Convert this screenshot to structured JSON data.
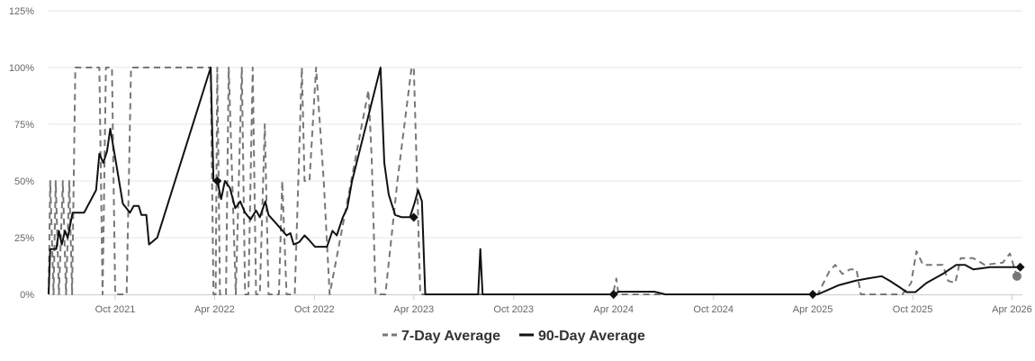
{
  "chart_data": {
    "type": "line",
    "title": "",
    "xlabel": "",
    "ylabel": "",
    "ylim": [
      0,
      1.25
    ],
    "y_ticks": [
      {
        "value": 0,
        "label": "0%"
      },
      {
        "value": 0.25,
        "label": "25%"
      },
      {
        "value": 0.5,
        "label": "50%"
      },
      {
        "value": 0.75,
        "label": "75%"
      },
      {
        "value": 1.0,
        "label": "100%"
      },
      {
        "value": 1.25,
        "label": "125%"
      }
    ],
    "xlim": [
      "2021-06-01",
      "2026-04-20"
    ],
    "x_ticks": [
      {
        "date": "2021-10-01",
        "label": "Oct 2021"
      },
      {
        "date": "2022-04-01",
        "label": "Apr 2022"
      },
      {
        "date": "2022-10-01",
        "label": "Oct 2022"
      },
      {
        "date": "2023-04-01",
        "label": "Apr 2023"
      },
      {
        "date": "2023-10-01",
        "label": "Oct 2023"
      },
      {
        "date": "2024-04-01",
        "label": "Apr 2024"
      },
      {
        "date": "2024-10-01",
        "label": "Oct 2024"
      },
      {
        "date": "2025-04-01",
        "label": "Apr 2025"
      },
      {
        "date": "2025-10-01",
        "label": "Oct 2025"
      },
      {
        "date": "2026-04-01",
        "label": "Apr 2026"
      }
    ],
    "grid": "horizontal",
    "legend_position": "bottom-center",
    "series": [
      {
        "name": "7-Day Average",
        "color": "#777777",
        "style": "dashed",
        "end_marker": "circle",
        "points": [
          [
            "2021-06-01",
            0
          ],
          [
            "2021-06-04",
            0.5
          ],
          [
            "2021-06-10",
            0
          ],
          [
            "2021-06-14",
            0.5
          ],
          [
            "2021-06-20",
            0
          ],
          [
            "2021-06-27",
            0.5
          ],
          [
            "2021-07-03",
            0
          ],
          [
            "2021-07-09",
            0.5
          ],
          [
            "2021-07-14",
            0
          ],
          [
            "2021-07-20",
            1.0
          ],
          [
            "2021-09-02",
            1.0
          ],
          [
            "2021-09-08",
            0
          ],
          [
            "2021-09-14",
            1.0
          ],
          [
            "2021-09-25",
            1.0
          ],
          [
            "2021-10-01",
            0
          ],
          [
            "2021-10-06",
            0
          ],
          [
            "2021-10-12",
            0
          ],
          [
            "2021-10-22",
            0
          ],
          [
            "2021-10-30",
            1.0
          ],
          [
            "2022-03-25",
            1.0
          ],
          [
            "2022-03-30",
            0
          ],
          [
            "2022-04-03",
            0
          ],
          [
            "2022-04-06",
            1.0
          ],
          [
            "2022-04-11",
            0
          ],
          [
            "2022-04-22",
            0
          ],
          [
            "2022-04-27",
            1.0
          ],
          [
            "2022-05-10",
            0
          ],
          [
            "2022-05-21",
            1.0
          ],
          [
            "2022-05-27",
            0
          ],
          [
            "2022-06-02",
            0
          ],
          [
            "2022-06-10",
            1.0
          ],
          [
            "2022-06-16",
            0
          ],
          [
            "2022-06-23",
            0
          ],
          [
            "2022-07-02",
            0.75
          ],
          [
            "2022-07-09",
            0
          ],
          [
            "2022-07-28",
            0
          ],
          [
            "2022-08-03",
            0.5
          ],
          [
            "2022-08-11",
            0
          ],
          [
            "2022-08-26",
            0
          ],
          [
            "2022-09-08",
            1.0
          ],
          [
            "2022-09-13",
            0.5
          ],
          [
            "2022-09-22",
            0.5
          ],
          [
            "2022-10-04",
            1.0
          ],
          [
            "2022-10-18",
            0.5
          ],
          [
            "2022-10-29",
            0
          ],
          [
            "2023-01-08",
            0.9
          ],
          [
            "2023-01-14",
            0.6
          ],
          [
            "2023-01-21",
            0
          ],
          [
            "2023-02-08",
            0
          ],
          [
            "2023-03-02",
            0.5
          ],
          [
            "2023-03-28",
            1.0
          ],
          [
            "2023-04-01",
            1.0
          ],
          [
            "2023-04-13",
            0
          ],
          [
            "2024-03-31",
            0
          ],
          [
            "2024-04-06",
            0.07
          ],
          [
            "2024-04-10",
            0
          ],
          [
            "2025-04-10",
            0
          ],
          [
            "2025-05-01",
            0.1
          ],
          [
            "2025-05-12",
            0.13
          ],
          [
            "2025-05-25",
            0.09
          ],
          [
            "2025-06-08",
            0.11
          ],
          [
            "2025-06-20",
            0.11
          ],
          [
            "2025-06-28",
            0
          ],
          [
            "2025-09-12",
            0
          ],
          [
            "2025-09-28",
            0.05
          ],
          [
            "2025-10-08",
            0.19
          ],
          [
            "2025-10-20",
            0.13
          ],
          [
            "2025-11-06",
            0.13
          ],
          [
            "2025-11-25",
            0.13
          ],
          [
            "2025-12-05",
            0.06
          ],
          [
            "2025-12-18",
            0.05
          ],
          [
            "2025-12-28",
            0.16
          ],
          [
            "2026-01-20",
            0.16
          ],
          [
            "2026-02-10",
            0.13
          ],
          [
            "2026-03-15",
            0.14
          ],
          [
            "2026-03-28",
            0.18
          ],
          [
            "2026-04-10",
            0.08
          ]
        ]
      },
      {
        "name": "90-Day Average",
        "color": "#111111",
        "style": "solid",
        "end_marker": "diamond",
        "points": [
          [
            "2021-06-01",
            0
          ],
          [
            "2021-06-04",
            0.2
          ],
          [
            "2021-06-15",
            0.2
          ],
          [
            "2021-06-20",
            0.28
          ],
          [
            "2021-06-25",
            0.22
          ],
          [
            "2021-07-01",
            0.28
          ],
          [
            "2021-07-06",
            0.25
          ],
          [
            "2021-07-15",
            0.36
          ],
          [
            "2021-08-05",
            0.36
          ],
          [
            "2021-08-27",
            0.46
          ],
          [
            "2021-09-02",
            0.62
          ],
          [
            "2021-09-09",
            0.58
          ],
          [
            "2021-09-16",
            0.63
          ],
          [
            "2021-09-22",
            0.73
          ],
          [
            "2021-10-04",
            0.56
          ],
          [
            "2021-10-15",
            0.4
          ],
          [
            "2021-10-28",
            0.36
          ],
          [
            "2021-11-04",
            0.39
          ],
          [
            "2021-11-13",
            0.39
          ],
          [
            "2021-11-18",
            0.35
          ],
          [
            "2021-11-27",
            0.35
          ],
          [
            "2021-12-02",
            0.22
          ],
          [
            "2021-12-17",
            0.25
          ],
          [
            "2022-03-25",
            1.0
          ],
          [
            "2022-03-30",
            0.5
          ],
          [
            "2022-04-06",
            0.5
          ],
          [
            "2022-04-13",
            0.42
          ],
          [
            "2022-04-20",
            0.5
          ],
          [
            "2022-04-29",
            0.47
          ],
          [
            "2022-05-09",
            0.38
          ],
          [
            "2022-05-18",
            0.41
          ],
          [
            "2022-05-27",
            0.36
          ],
          [
            "2022-06-06",
            0.33
          ],
          [
            "2022-06-16",
            0.37
          ],
          [
            "2022-06-23",
            0.34
          ],
          [
            "2022-07-03",
            0.41
          ],
          [
            "2022-07-09",
            0.35
          ],
          [
            "2022-07-24",
            0.31
          ],
          [
            "2022-08-11",
            0.26
          ],
          [
            "2022-08-18",
            0.27
          ],
          [
            "2022-08-24",
            0.22
          ],
          [
            "2022-09-03",
            0.23
          ],
          [
            "2022-09-13",
            0.26
          ],
          [
            "2022-09-21",
            0.24
          ],
          [
            "2022-10-02",
            0.21
          ],
          [
            "2022-10-24",
            0.21
          ],
          [
            "2022-11-03",
            0.28
          ],
          [
            "2022-11-11",
            0.26
          ],
          [
            "2022-11-22",
            0.34
          ],
          [
            "2022-11-30",
            0.38
          ],
          [
            "2022-12-09",
            0.5
          ],
          [
            "2023-01-30",
            1.0
          ],
          [
            "2023-02-06",
            0.58
          ],
          [
            "2023-02-14",
            0.44
          ],
          [
            "2023-02-26",
            0.35
          ],
          [
            "2023-03-10",
            0.34
          ],
          [
            "2023-03-25",
            0.34
          ],
          [
            "2023-04-02",
            0.4
          ],
          [
            "2023-04-09",
            0.46
          ],
          [
            "2023-04-16",
            0.41
          ],
          [
            "2023-04-22",
            0
          ],
          [
            "2023-07-28",
            0
          ],
          [
            "2023-08-01",
            0.2
          ],
          [
            "2023-08-05",
            0
          ],
          [
            "2024-04-02",
            0
          ],
          [
            "2024-04-10",
            0.012
          ],
          [
            "2024-06-15",
            0.012
          ],
          [
            "2024-07-05",
            0
          ],
          [
            "2025-04-10",
            0
          ],
          [
            "2025-05-18",
            0.04
          ],
          [
            "2025-06-18",
            0.06
          ],
          [
            "2025-07-10",
            0.07
          ],
          [
            "2025-08-05",
            0.08
          ],
          [
            "2025-08-20",
            0.06
          ],
          [
            "2025-09-08",
            0.03
          ],
          [
            "2025-09-20",
            0.01
          ],
          [
            "2025-10-06",
            0.01
          ],
          [
            "2025-10-26",
            0.05
          ],
          [
            "2025-11-25",
            0.09
          ],
          [
            "2025-12-20",
            0.13
          ],
          [
            "2026-01-05",
            0.13
          ],
          [
            "2026-01-20",
            0.11
          ],
          [
            "2026-02-20",
            0.12
          ],
          [
            "2026-04-10",
            0.12
          ]
        ],
        "diamond_markers": [
          [
            "2022-04-06",
            0.5
          ],
          [
            "2023-04-01",
            0.34
          ],
          [
            "2024-04-01",
            0
          ],
          [
            "2025-04-01",
            0
          ],
          [
            "2026-04-16",
            0.12
          ]
        ]
      }
    ]
  }
}
